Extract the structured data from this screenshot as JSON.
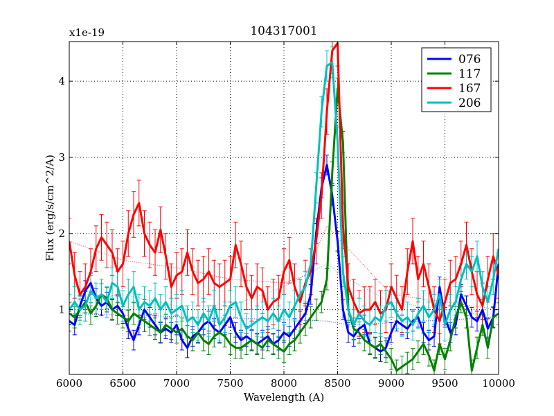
{
  "chart_data": {
    "type": "line",
    "title": "104317001",
    "xlabel": "Wavelength (A)",
    "ylabel": "Flux (erg/s/cm^2/A)",
    "offset_label": "x1e-19",
    "xlim": [
      6000,
      10000
    ],
    "ylim": [
      0.15,
      4.52
    ],
    "xticks": [
      6000,
      6500,
      7000,
      7500,
      8000,
      8500,
      9000,
      9500,
      10000
    ],
    "yticks": [
      1,
      2,
      3,
      4
    ],
    "grid": true,
    "legend_position": "top-right",
    "x": [
      6000,
      6050,
      6100,
      6150,
      6200,
      6250,
      6300,
      6350,
      6400,
      6450,
      6500,
      6550,
      6600,
      6650,
      6700,
      6750,
      6800,
      6850,
      6900,
      6950,
      7000,
      7050,
      7100,
      7150,
      7200,
      7250,
      7300,
      7350,
      7400,
      7450,
      7500,
      7550,
      7600,
      7650,
      7700,
      7750,
      7800,
      7850,
      7900,
      7950,
      8000,
      8050,
      8100,
      8150,
      8200,
      8250,
      8300,
      8350,
      8400,
      8450,
      8500,
      8550,
      8600,
      8650,
      8700,
      8750,
      8800,
      8850,
      8900,
      8950,
      9000,
      9050,
      9100,
      9150,
      9200,
      9250,
      9300,
      9350,
      9400,
      9450,
      9500,
      9550,
      9600,
      9650,
      9700,
      9750,
      9800,
      9850,
      9900,
      9950,
      10000
    ],
    "series": [
      {
        "name": "076",
        "color": "#0000ff",
        "yerr": 0.13,
        "values": [
          0.85,
          0.8,
          1.05,
          1.25,
          1.35,
          1.15,
          1.05,
          1.1,
          1.0,
          1.05,
          0.95,
          0.75,
          0.6,
          0.8,
          1.0,
          0.9,
          0.8,
          0.7,
          0.75,
          0.7,
          0.8,
          0.6,
          0.5,
          0.65,
          0.7,
          0.8,
          0.85,
          0.75,
          0.7,
          0.8,
          0.9,
          0.7,
          0.6,
          0.65,
          0.6,
          0.55,
          0.6,
          0.65,
          0.55,
          0.6,
          0.7,
          0.65,
          0.75,
          0.85,
          0.95,
          1.2,
          2.0,
          2.6,
          2.9,
          2.5,
          1.9,
          1.0,
          0.7,
          0.65,
          0.75,
          0.8,
          0.55,
          0.5,
          0.45,
          0.5,
          0.7,
          0.85,
          0.8,
          0.75,
          0.85,
          0.9,
          0.7,
          0.6,
          0.65,
          1.3,
          0.9,
          0.7,
          0.8,
          1.2,
          1.05,
          0.9,
          0.85,
          1.0,
          0.75,
          0.9,
          1.6
        ]
      },
      {
        "name": "117",
        "color": "#008000",
        "yerr": 0.14,
        "values": [
          0.95,
          0.9,
          1.0,
          1.1,
          0.95,
          1.05,
          1.2,
          1.15,
          1.0,
          0.95,
          0.9,
          0.85,
          0.95,
          0.9,
          0.85,
          0.8,
          0.75,
          0.7,
          0.8,
          0.75,
          0.7,
          0.75,
          0.65,
          0.6,
          0.7,
          0.6,
          0.55,
          0.65,
          0.7,
          0.65,
          0.55,
          0.5,
          0.5,
          0.55,
          0.6,
          0.55,
          0.5,
          0.6,
          0.55,
          0.5,
          0.45,
          0.55,
          0.6,
          0.7,
          0.8,
          0.9,
          1.0,
          1.1,
          1.4,
          2.8,
          3.9,
          3.2,
          1.0,
          0.75,
          0.7,
          0.6,
          0.55,
          0.5,
          0.55,
          0.45,
          0.35,
          0.2,
          0.25,
          0.3,
          0.35,
          0.45,
          0.55,
          0.4,
          0.2,
          0.55,
          0.35,
          0.6,
          0.9,
          1.1,
          0.9,
          0.2,
          0.5,
          0.8,
          0.5,
          0.9,
          0.95
        ]
      },
      {
        "name": "167",
        "color": "#ff0000",
        "yerr": 0.3,
        "values": [
          1.9,
          1.45,
          1.2,
          1.3,
          1.5,
          1.8,
          1.95,
          1.85,
          1.75,
          1.5,
          1.6,
          2.0,
          2.25,
          2.4,
          2.0,
          1.85,
          1.75,
          2.05,
          1.7,
          1.3,
          1.45,
          1.5,
          1.75,
          1.5,
          1.35,
          1.4,
          1.5,
          1.35,
          1.3,
          1.35,
          1.4,
          1.85,
          1.6,
          1.3,
          1.15,
          1.3,
          1.25,
          1.0,
          1.1,
          1.15,
          1.5,
          1.65,
          1.3,
          1.1,
          1.35,
          1.5,
          1.9,
          2.5,
          3.6,
          4.4,
          4.5,
          2.1,
          1.3,
          1.1,
          0.95,
          1.0,
          1.0,
          1.1,
          0.95,
          1.0,
          1.3,
          1.15,
          1.0,
          1.5,
          1.9,
          1.4,
          1.6,
          1.3,
          1.0,
          0.85,
          1.1,
          1.35,
          1.4,
          1.6,
          1.85,
          1.5,
          1.2,
          1.05,
          1.4,
          1.7,
          1.45
        ]
      },
      {
        "name": "206",
        "color": "#00bfbf",
        "yerr": 0.2,
        "values": [
          1.0,
          1.1,
          1.0,
          1.05,
          1.25,
          1.15,
          1.2,
          1.1,
          1.35,
          1.3,
          1.05,
          1.2,
          1.3,
          1.0,
          1.1,
          1.05,
          1.15,
          1.0,
          1.1,
          0.95,
          1.0,
          1.05,
          0.85,
          0.9,
          0.8,
          0.95,
          0.85,
          1.05,
          0.8,
          0.9,
          1.05,
          1.1,
          0.9,
          0.75,
          0.8,
          0.85,
          0.9,
          0.85,
          0.95,
          0.85,
          1.0,
          0.9,
          1.05,
          1.2,
          1.3,
          1.6,
          2.6,
          3.6,
          4.2,
          4.25,
          3.2,
          1.5,
          1.0,
          0.8,
          0.95,
          0.85,
          0.8,
          0.9,
          0.85,
          1.05,
          1.1,
          0.95,
          0.85,
          0.9,
          0.8,
          0.95,
          1.05,
          0.9,
          1.0,
          1.2,
          0.8,
          1.0,
          1.1,
          1.4,
          1.6,
          1.5,
          1.7,
          1.3,
          1.1,
          1.4,
          1.8
        ]
      }
    ],
    "trend_lines": [
      {
        "name": "076",
        "color": "#0000ff",
        "x": [
          6000,
          8400,
          8600,
          10000
        ],
        "values": [
          0.95,
          0.85,
          0.8,
          0.9
        ]
      },
      {
        "name": "167",
        "color": "#ff0000",
        "x": [
          6000,
          6500,
          7000,
          7500,
          8000,
          8200,
          8400,
          8600,
          8800,
          9000,
          10000
        ],
        "values": [
          1.9,
          1.65,
          1.55,
          1.4,
          1.35,
          1.45,
          2.1,
          1.8,
          1.5,
          1.2,
          1.0
        ]
      },
      {
        "name": "206",
        "color": "#00bfbf",
        "x": [
          6000,
          6500,
          7000,
          7500,
          8000,
          8400,
          8600,
          9000,
          10000
        ],
        "values": [
          1.1,
          1.2,
          1.05,
          1.05,
          1.3,
          1.6,
          1.4,
          1.1,
          0.9
        ]
      }
    ]
  }
}
